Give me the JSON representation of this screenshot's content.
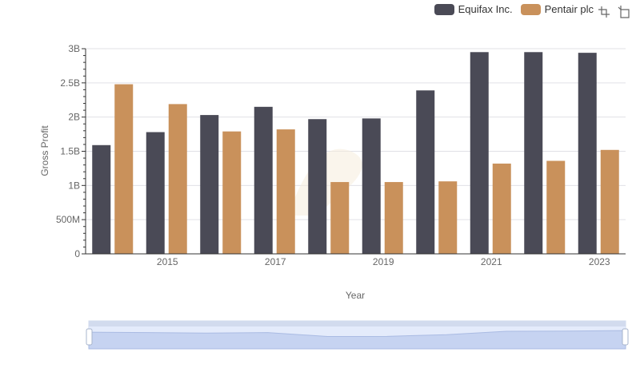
{
  "legend": {
    "items": [
      {
        "label": "Equifax Inc.",
        "color": "#4a4a56"
      },
      {
        "label": "Pentair plc",
        "color": "#c9915b"
      }
    ]
  },
  "toolbox": {
    "icons": [
      "zoom-icon",
      "restore-icon"
    ]
  },
  "chart_data": {
    "type": "bar",
    "categories": [
      "2014",
      "2015",
      "2016",
      "2017",
      "2018",
      "2019",
      "2020",
      "2021",
      "2022",
      "2023"
    ],
    "x_tick_labels": [
      "2015",
      "2017",
      "2019",
      "2021",
      "2023"
    ],
    "series": [
      {
        "name": "Equifax Inc.",
        "color": "#4a4a56",
        "values": [
          1.59,
          1.78,
          2.03,
          2.15,
          1.97,
          1.98,
          2.39,
          2.95,
          2.95,
          2.94
        ]
      },
      {
        "name": "Pentair plc",
        "color": "#c9915b",
        "values": [
          2.48,
          2.19,
          1.79,
          1.82,
          1.05,
          1.05,
          1.06,
          1.32,
          1.36,
          1.52
        ]
      }
    ],
    "ylabel": "Gross Profit",
    "xlabel": "Year",
    "ylim": [
      0,
      3
    ],
    "y_tick_labels": [
      "0",
      "500M",
      "1B",
      "1.5B",
      "2B",
      "2.5B",
      "3B"
    ],
    "grid": true
  }
}
